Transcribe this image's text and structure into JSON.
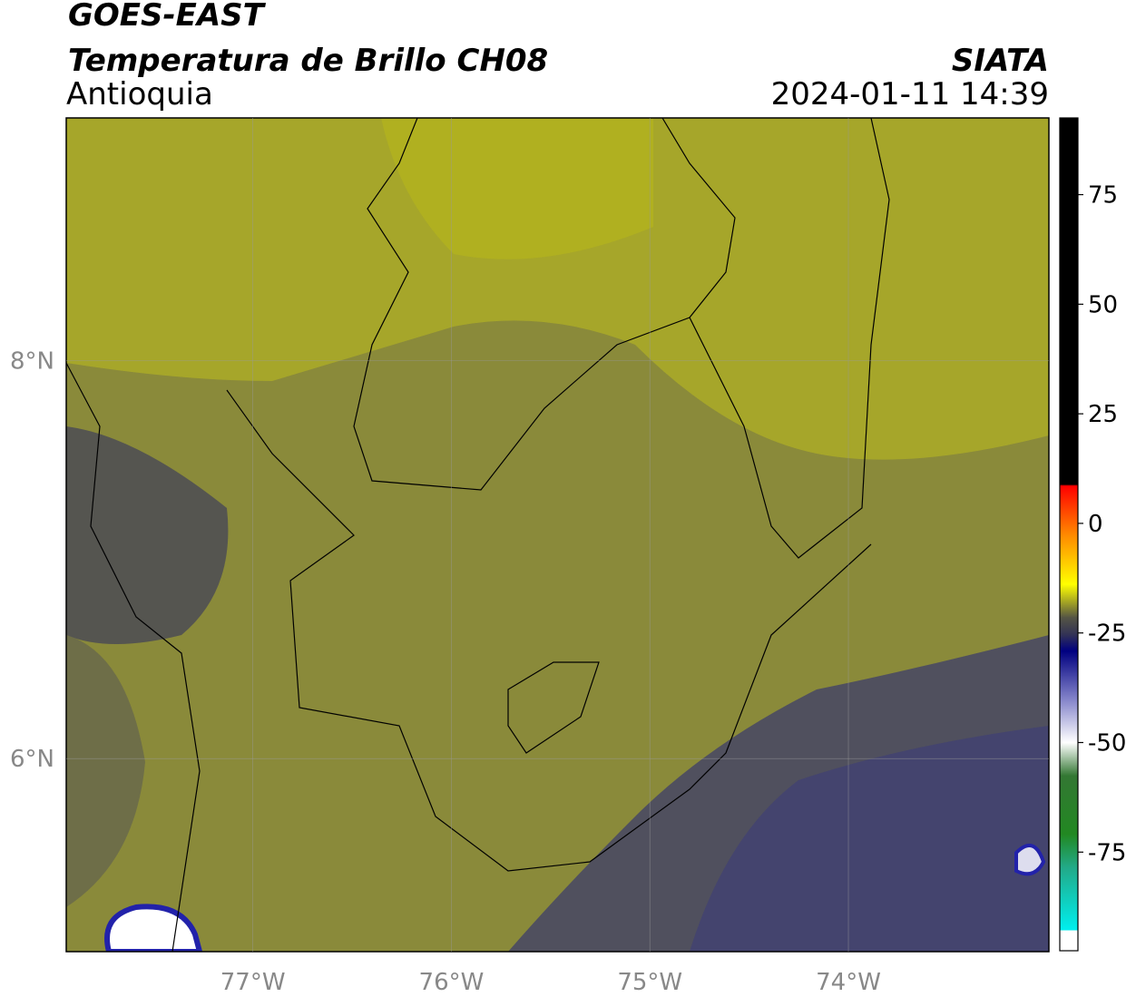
{
  "header": {
    "title": "GOES-EAST",
    "subtitle": "Temperatura de Brillo CH08",
    "region": "Antioquia",
    "source": "SIATA",
    "datetime": "2024-01-11 14:39"
  },
  "map": {
    "lon_range": [
      -77.94,
      -72.99
    ],
    "lat_range": [
      5.03,
      9.22
    ],
    "lon_ticks": [
      {
        "value": -77,
        "label": "77°W"
      },
      {
        "value": -76,
        "label": "76°W"
      },
      {
        "value": -75,
        "label": "75°W"
      },
      {
        "value": -74,
        "label": "74°W"
      }
    ],
    "lat_ticks": [
      {
        "value": 8,
        "label": "8°N"
      },
      {
        "value": 6,
        "label": "6°N"
      }
    ]
  },
  "colorbar": {
    "range": [
      -97.5,
      92.5
    ],
    "ticks": [
      75,
      50,
      25,
      0,
      -25,
      -50,
      -75
    ]
  }
}
